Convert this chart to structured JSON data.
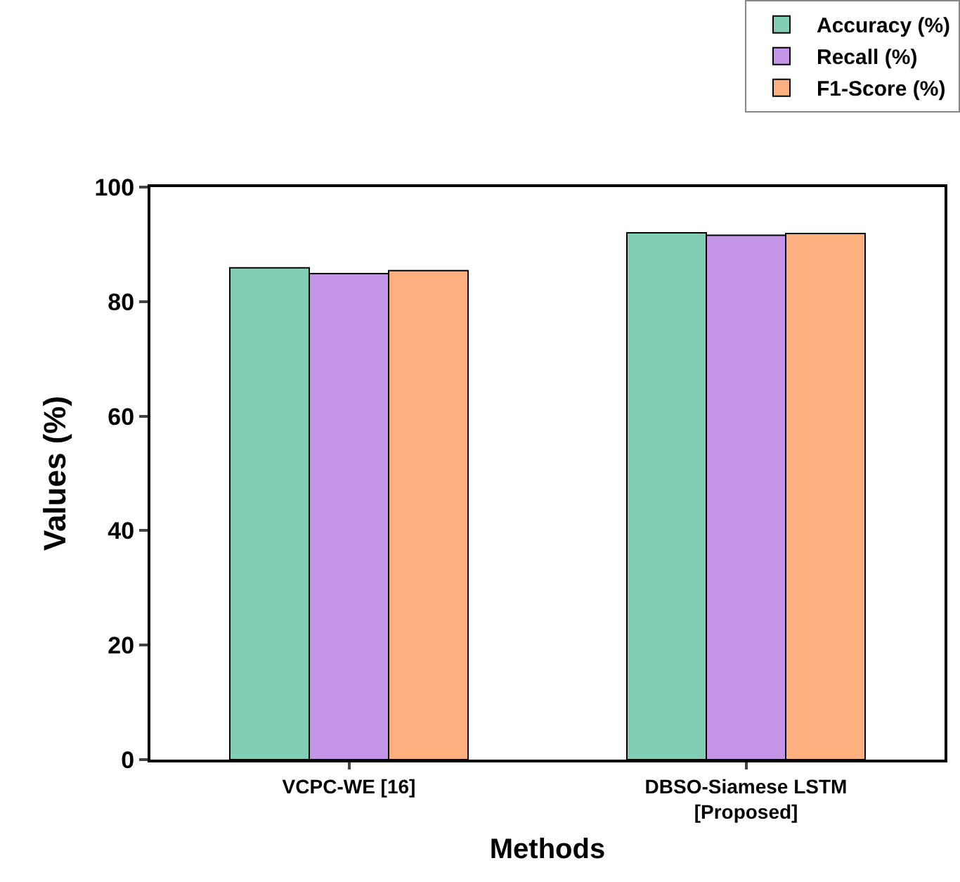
{
  "chart_data": {
    "type": "bar",
    "xlabel": "Methods",
    "ylabel": "Values (%)",
    "categories": [
      "VCPC-WE [16]",
      "DBSO-Siamese LSTM\n[Proposed]"
    ],
    "series": [
      {
        "name": "Accuracy (%)",
        "color": "#82cdb5",
        "values": [
          85.9,
          92.0
        ]
      },
      {
        "name": "Recall (%)",
        "color": "#c495e6",
        "values": [
          84.9,
          91.6
        ]
      },
      {
        "name": "F1-Score (%)",
        "color": "#fdb07f",
        "values": [
          85.4,
          91.9
        ]
      }
    ],
    "ylim": [
      0,
      100
    ],
    "yticks": [
      0,
      20,
      40,
      60,
      80,
      100
    ],
    "grid": false,
    "legend": "top right"
  }
}
